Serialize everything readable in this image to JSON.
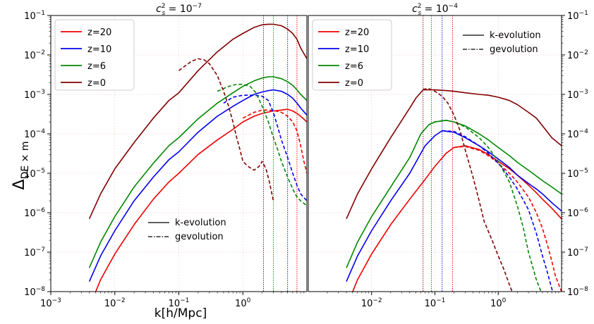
{
  "figure": {
    "ylabel_main": "Δ",
    "ylabel_sub": "DE × m",
    "xlabel": "k[h/Mpc]"
  },
  "chart_data": [
    {
      "type": "line",
      "title_base": "c",
      "title_sup": "2",
      "title_sub": "s",
      "title_rest": " = 10",
      "title_exp": "−7",
      "xscale": "log",
      "yscale": "log",
      "xlim": [
        0.001,
        10
      ],
      "ylim": [
        1e-08,
        0.1
      ],
      "x_ticks": [
        {
          "base": "10",
          "exp": "−3"
        },
        {
          "base": "10",
          "exp": "−2"
        },
        {
          "base": "10",
          "exp": "−1"
        },
        {
          "base": "10",
          "exp": "0"
        }
      ],
      "y_ticks": [
        {
          "base": "10",
          "exp": "−8"
        },
        {
          "base": "10",
          "exp": "−7"
        },
        {
          "base": "10",
          "exp": "−6"
        },
        {
          "base": "10",
          "exp": "−5"
        },
        {
          "base": "10",
          "exp": "−4"
        },
        {
          "base": "10",
          "exp": "−3"
        },
        {
          "base": "10",
          "exp": "−2"
        },
        {
          "base": "10",
          "exp": "−1"
        }
      ],
      "y_ticks_side": "left",
      "grid": true,
      "legend_position": "top-left",
      "style_legend_position": "bottom-center",
      "style_legend": [
        "k-evolution",
        "gevolution"
      ],
      "series": [
        {
          "name": "z=20",
          "color": "#ee0000",
          "k_evolution": {
            "x": [
              0.004,
              0.006,
              0.01,
              0.02,
              0.04,
              0.07,
              0.1,
              0.2,
              0.4,
              0.7,
              1,
              1.5,
              2,
              3,
              4,
              5,
              6,
              7,
              8,
              10
            ],
            "y": [
              4e-09,
              2e-08,
              9e-08,
              5e-07,
              2.2e-06,
              6e-06,
              1e-05,
              3e-05,
              7e-05,
              0.00013,
              0.0002,
              0.00028,
              0.00033,
              0.00038,
              0.0004,
              0.00042,
              0.00038,
              0.00033,
              0.00028,
              0.0002
            ]
          },
          "gevolution": {
            "x": [
              1,
              1.5,
              2,
              2.5,
              3,
              3.5,
              4,
              5,
              6,
              7,
              8,
              9,
              10
            ],
            "y": [
              0.00025,
              0.00035,
              0.0004,
              0.0004,
              0.00039,
              0.00037,
              0.00035,
              0.00028,
              0.0002,
              0.00012,
              5e-05,
              2e-05,
              1e-05
            ]
          }
        },
        {
          "name": "z=10",
          "color": "#0000ee",
          "k_evolution": {
            "x": [
              0.004,
              0.006,
              0.01,
              0.02,
              0.04,
              0.07,
              0.1,
              0.2,
              0.4,
              0.7,
              1,
              1.5,
              2,
              2.5,
              3,
              4,
              5,
              6,
              7,
              8,
              10
            ],
            "y": [
              1.8e-08,
              8e-08,
              3.5e-07,
              2e-06,
              8e-06,
              2.2e-05,
              3.5e-05,
              0.00011,
              0.00028,
              0.0005,
              0.0007,
              0.001,
              0.00115,
              0.00125,
              0.0013,
              0.0012,
              0.001,
              0.0008,
              0.0006,
              0.00045,
              0.0003
            ]
          },
          "gevolution": {
            "x": [
              0.5,
              0.7,
              1,
              1.5,
              2,
              2.5,
              3,
              3.5,
              4,
              5,
              6,
              7,
              8,
              10
            ],
            "y": [
              0.0006,
              0.00085,
              0.00095,
              0.00095,
              0.0009,
              0.0007,
              0.00035,
              0.00015,
              7e-05,
              2.5e-05,
              1e-05,
              5e-06,
              3e-06,
              2e-06
            ]
          }
        },
        {
          "name": "z=6",
          "color": "#008800",
          "k_evolution": {
            "x": [
              0.004,
              0.006,
              0.01,
              0.02,
              0.04,
              0.07,
              0.1,
              0.2,
              0.4,
              0.7,
              1,
              1.5,
              2,
              2.5,
              3,
              4,
              5,
              6,
              7,
              8,
              10
            ],
            "y": [
              4e-08,
              1.8e-07,
              8e-07,
              4.5e-06,
              1.8e-05,
              5e-05,
              8e-05,
              0.00024,
              0.0006,
              0.0011,
              0.0016,
              0.0022,
              0.0026,
              0.0028,
              0.0028,
              0.0025,
              0.0021,
              0.0017,
              0.0013,
              0.001,
              0.0007
            ]
          },
          "gevolution": {
            "x": [
              0.4,
              0.6,
              0.8,
              1,
              1.3,
              1.6,
              2,
              2.5,
              3,
              3.5,
              4,
              5,
              6,
              7,
              8,
              10
            ],
            "y": [
              0.0012,
              0.0016,
              0.0018,
              0.0018,
              0.0016,
              0.0011,
              0.0005,
              0.0002,
              8e-05,
              4e-05,
              2e-05,
              8e-06,
              4e-06,
              2.5e-06,
              2e-06,
              1.5e-06
            ]
          }
        },
        {
          "name": "z=0",
          "color": "#800000",
          "k_evolution": {
            "x": [
              0.004,
              0.006,
              0.01,
              0.02,
              0.04,
              0.07,
              0.1,
              0.2,
              0.4,
              0.7,
              1,
              1.5,
              2,
              2.5,
              3,
              4,
              5,
              6,
              7,
              8,
              10
            ],
            "y": [
              7e-07,
              3e-06,
              1.3e-05,
              6e-05,
              0.00025,
              0.0007,
              0.0011,
              0.004,
              0.012,
              0.025,
              0.035,
              0.05,
              0.058,
              0.06,
              0.06,
              0.055,
              0.045,
              0.035,
              0.025,
              0.015,
              0.008
            ]
          },
          "gevolution": {
            "x": [
              0.1,
              0.13,
              0.16,
              0.2,
              0.25,
              0.3,
              0.4,
              0.5,
              0.6,
              0.7,
              0.8,
              0.9,
              1,
              1.2,
              1.5,
              1.8,
              2,
              2.3,
              2.6,
              3
            ],
            "y": [
              0.004,
              0.0055,
              0.007,
              0.008,
              0.0075,
              0.006,
              0.003,
              0.0012,
              0.0005,
              0.0002,
              8e-05,
              4e-05,
              2e-05,
              1.5e-05,
              1.2e-05,
              1.5e-05,
              2e-05,
              1.3e-05,
              6e-06,
              2e-06
            ]
          }
        }
      ],
      "vlines": [
        {
          "x": 2.1,
          "color": "#800000"
        },
        {
          "x": 3.0,
          "color": "#008800"
        },
        {
          "x": 5.0,
          "color": "#0000ee"
        },
        {
          "x": 7.0,
          "color": "#ee0000"
        }
      ]
    },
    {
      "type": "line",
      "title_base": "c",
      "title_sup": "2",
      "title_sub": "s",
      "title_rest": " = 10",
      "title_exp": "−4",
      "xscale": "log",
      "yscale": "log",
      "xlim": [
        0.001,
        10
      ],
      "ylim": [
        1e-08,
        0.1
      ],
      "x_ticks": [
        {
          "base": "10",
          "exp": "−2"
        },
        {
          "base": "10",
          "exp": "−1"
        },
        {
          "base": "10",
          "exp": "0"
        }
      ],
      "y_ticks": [
        {
          "base": "10",
          "exp": "−8"
        },
        {
          "base": "10",
          "exp": "−7"
        },
        {
          "base": "10",
          "exp": "−6"
        },
        {
          "base": "10",
          "exp": "−5"
        },
        {
          "base": "10",
          "exp": "−4"
        },
        {
          "base": "10",
          "exp": "−3"
        },
        {
          "base": "10",
          "exp": "−2"
        },
        {
          "base": "10",
          "exp": "−1"
        }
      ],
      "y_ticks_side": "right",
      "grid": true,
      "legend_position": "top-left",
      "style_legend_position": "top-right",
      "style_legend": [
        "k-evolution",
        "gevolution"
      ],
      "series": [
        {
          "name": "z=20",
          "color": "#ee0000",
          "k_evolution": {
            "x": [
              0.004,
              0.006,
              0.01,
              0.02,
              0.04,
              0.07,
              0.1,
              0.15,
              0.2,
              0.3,
              0.5,
              0.7,
              1,
              1.5,
              2,
              3,
              4,
              5,
              7,
              10
            ],
            "y": [
              4e-09,
              2e-08,
              9e-08,
              5e-07,
              2.2e-06,
              7e-06,
              1.5e-05,
              3.2e-05,
              4.5e-05,
              5e-05,
              4e-05,
              3e-05,
              2e-05,
              1.3e-05,
              9e-06,
              5e-06,
              3.2e-06,
              2.2e-06,
              1.3e-06,
              7e-07
            ]
          },
          "gevolution": {
            "x": [
              0.2,
              0.3,
              0.5,
              0.7,
              1,
              1.5,
              2,
              3,
              4,
              5,
              6,
              7,
              8,
              10
            ],
            "y": [
              4.5e-05,
              4.8e-05,
              3.8e-05,
              2.8e-05,
              1.8e-05,
              1e-05,
              6e-06,
              2.5e-06,
              1e-06,
              4e-07,
              1.5e-07,
              6e-08,
              2.5e-08,
              1e-08
            ]
          }
        },
        {
          "name": "z=10",
          "color": "#0000ee",
          "k_evolution": {
            "x": [
              0.004,
              0.006,
              0.01,
              0.02,
              0.04,
              0.07,
              0.1,
              0.13,
              0.2,
              0.3,
              0.5,
              0.7,
              1,
              1.5,
              2,
              3,
              4,
              5,
              7,
              10
            ],
            "y": [
              1.8e-08,
              8e-08,
              3.5e-07,
              2e-06,
              1e-05,
              5e-05,
              9e-05,
              0.00012,
              0.00011,
              8e-05,
              5e-05,
              3.5e-05,
              2.3e-05,
              1.4e-05,
              9e-06,
              5.5e-06,
              4e-06,
              3e-06,
              1.8e-06,
              1.1e-06
            ]
          },
          "gevolution": {
            "x": [
              0.13,
              0.2,
              0.3,
              0.5,
              0.7,
              1,
              1.5,
              2,
              3,
              4,
              5,
              6,
              7,
              8
            ],
            "y": [
              0.00012,
              0.000115,
              8.5e-05,
              5e-05,
              3.2e-05,
              1.8e-05,
              8e-06,
              4e-06,
              1.2e-06,
              3e-07,
              8e-08,
              3e-08,
              1.2e-08,
              6e-09
            ]
          }
        },
        {
          "name": "z=6",
          "color": "#008800",
          "k_evolution": {
            "x": [
              0.004,
              0.006,
              0.01,
              0.02,
              0.04,
              0.06,
              0.08,
              0.1,
              0.15,
              0.2,
              0.3,
              0.5,
              0.7,
              1,
              1.5,
              2,
              3,
              4,
              5,
              7,
              10
            ],
            "y": [
              4e-08,
              1.8e-07,
              8e-07,
              4.5e-06,
              2.5e-05,
              0.0001,
              0.00017,
              0.0002,
              0.00022,
              0.0002,
              0.00016,
              0.0001,
              7e-05,
              4.5e-05,
              2.8e-05,
              1.9e-05,
              1.2e-05,
              8.5e-06,
              6.5e-06,
              4.5e-06,
              3e-06
            ]
          },
          "gevolution": {
            "x": [
              0.08,
              0.1,
              0.15,
              0.2,
              0.3,
              0.5,
              0.7,
              1,
              1.5,
              2,
              2.5,
              3,
              4,
              5
            ],
            "y": [
              0.00017,
              0.0002,
              0.00022,
              0.0002,
              0.00015,
              8e-05,
              4.5e-05,
              2e-05,
              6e-06,
              1.5e-06,
              4e-07,
              1e-07,
              2e-08,
              8e-09
            ]
          }
        },
        {
          "name": "z=0",
          "color": "#800000",
          "k_evolution": {
            "x": [
              0.004,
              0.006,
              0.01,
              0.02,
              0.03,
              0.04,
              0.05,
              0.065,
              0.08,
              0.1,
              0.15,
              0.2,
              0.3,
              0.5,
              0.7,
              1,
              1.5,
              2,
              3,
              4,
              5,
              7,
              10
            ],
            "y": [
              7e-07,
              3e-06,
              1.3e-05,
              8e-05,
              0.00022,
              0.00045,
              0.0008,
              0.0013,
              0.0013,
              0.0013,
              0.00125,
              0.0012,
              0.0011,
              0.001,
              0.00095,
              0.00085,
              0.0007,
              0.00055,
              0.00035,
              0.00025,
              0.00016,
              8e-05,
              5e-05
            ]
          },
          "gevolution": {
            "x": [
              0.065,
              0.08,
              0.1,
              0.13,
              0.16,
              0.2,
              0.25,
              0.3,
              0.4,
              0.5,
              0.6,
              0.8,
              1,
              1.2,
              1.5,
              1.8
            ],
            "y": [
              0.00135,
              0.0014,
              0.0012,
              0.0009,
              0.0006,
              0.0003,
              0.00012,
              4e-05,
              8e-06,
              2e-06,
              6e-07,
              2e-07,
              8e-08,
              4e-08,
              1.5e-08,
              7e-09
            ]
          }
        }
      ],
      "vlines": [
        {
          "x": 0.065,
          "color": "#800000"
        },
        {
          "x": 0.088,
          "color": "#008800"
        },
        {
          "x": 0.13,
          "color": "#0000ee"
        },
        {
          "x": 0.19,
          "color": "#ee0000"
        }
      ]
    }
  ]
}
